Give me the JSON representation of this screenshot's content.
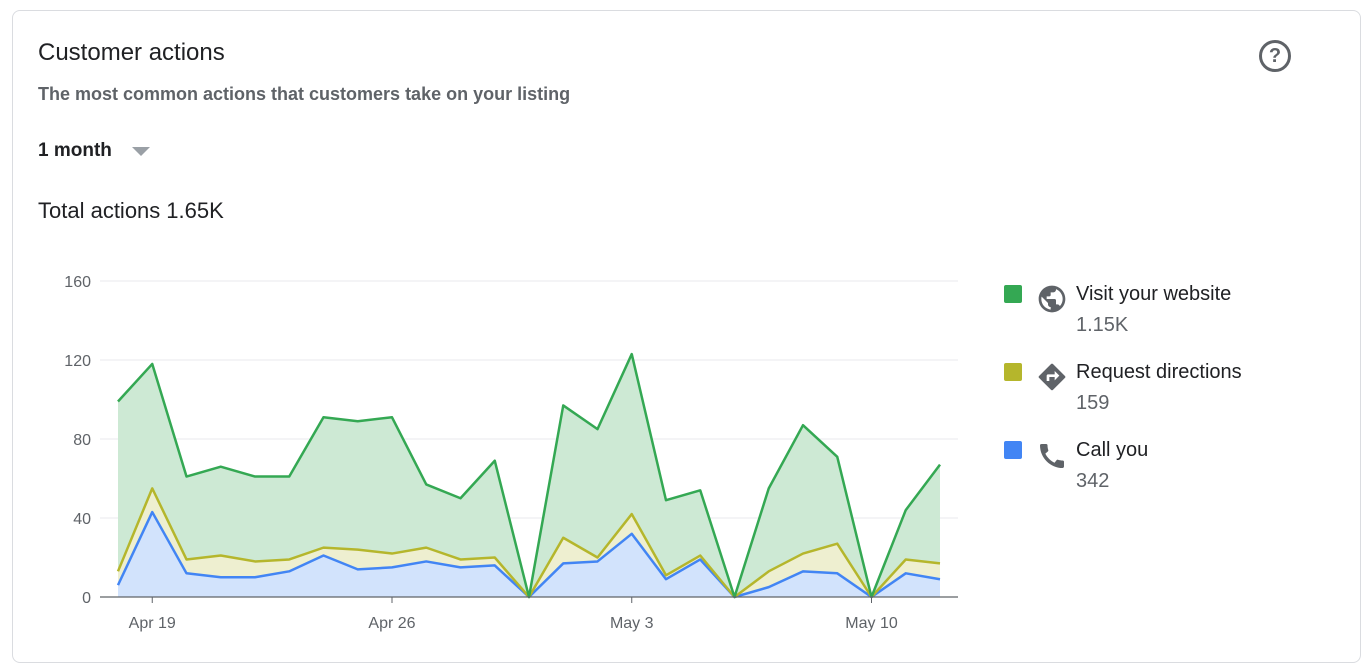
{
  "card": {
    "title": "Customer actions",
    "subtitle": "The most common actions that customers take on your listing",
    "help_icon": "help-circle-icon",
    "help_glyph": "?",
    "range_label": "1 month",
    "total_label": "Total actions",
    "total_value": "1.65K"
  },
  "legend": [
    {
      "label": "Visit your website",
      "value": "1.15K",
      "color": "#34a853",
      "icon": "globe-icon"
    },
    {
      "label": "Request directions",
      "value": "159",
      "color": "#b5b62c",
      "icon": "directions-icon"
    },
    {
      "label": "Call you",
      "value": "342",
      "color": "#4285f4",
      "icon": "phone-icon"
    }
  ],
  "chart_data": {
    "type": "area",
    "stacked": true,
    "title": "",
    "xlabel": "",
    "ylabel": "",
    "ylim": [
      0,
      160
    ],
    "y_ticks": [
      "0",
      "40",
      "80",
      "120",
      "160"
    ],
    "x_tick_labels": [
      "Apr 19",
      "Apr 26",
      "May 3",
      "May 10"
    ],
    "x": [
      "Apr 18",
      "Apr 19",
      "Apr 20",
      "Apr 21",
      "Apr 22",
      "Apr 23",
      "Apr 24",
      "Apr 25",
      "Apr 26",
      "Apr 27",
      "Apr 28",
      "Apr 29",
      "Apr 30",
      "May 1",
      "May 2",
      "May 3",
      "May 4",
      "May 5",
      "May 6",
      "May 7",
      "May 8",
      "May 9",
      "May 10",
      "May 11",
      "May 12"
    ],
    "grid": true,
    "legend_position": "right",
    "series": [
      {
        "name": "Call you",
        "color": "#4285f4",
        "fill": "#d2e3fc",
        "values": [
          6,
          43,
          12,
          10,
          10,
          13,
          21,
          14,
          15,
          18,
          15,
          16,
          0,
          17,
          18,
          32,
          9,
          19,
          0,
          5,
          13,
          12,
          0,
          12,
          9
        ]
      },
      {
        "name": "Request directions",
        "color": "#b5b62c",
        "fill": "#eeefd0",
        "values": [
          7,
          12,
          7,
          11,
          8,
          6,
          4,
          10,
          7,
          7,
          4,
          4,
          0,
          13,
          2,
          10,
          2,
          2,
          0,
          8,
          9,
          15,
          0,
          7,
          8
        ]
      },
      {
        "name": "Visit your website",
        "color": "#34a853",
        "fill": "#cde9d4",
        "values": [
          86,
          63,
          42,
          45,
          43,
          42,
          66,
          65,
          69,
          32,
          31,
          49,
          0,
          67,
          65,
          81,
          38,
          33,
          0,
          42,
          65,
          44,
          0,
          25,
          50
        ]
      }
    ]
  }
}
